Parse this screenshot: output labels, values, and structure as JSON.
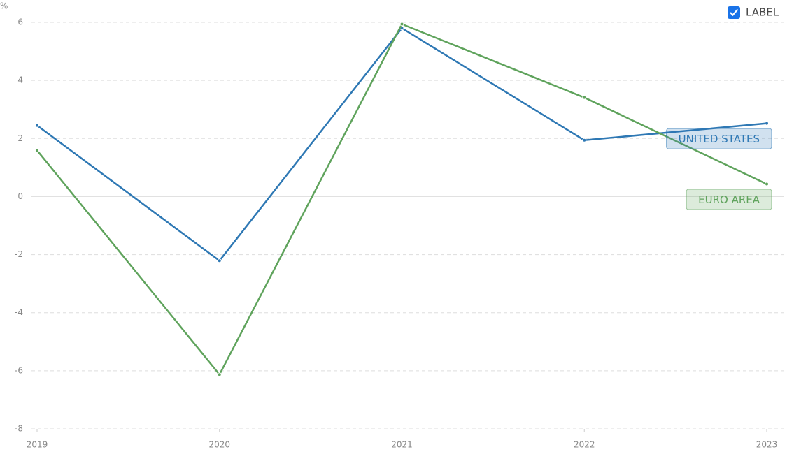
{
  "chart_data": {
    "type": "line",
    "y_label": "%",
    "categories": [
      "2019",
      "2020",
      "2021",
      "2022",
      "2023"
    ],
    "series": [
      {
        "name": "UNITED STATES",
        "color": "#2e78b4",
        "values": [
          2.45,
          -2.21,
          5.8,
          1.94,
          2.52
        ]
      },
      {
        "name": "EURO AREA",
        "color": "#5fa35c",
        "values": [
          1.59,
          -6.13,
          5.94,
          3.41,
          0.43
        ]
      }
    ],
    "ylim": [
      -8,
      6
    ],
    "yticks": [
      -8,
      -6,
      -4,
      -2,
      0,
      2,
      4,
      6
    ],
    "grid": true,
    "checkbox_label": "LABEL",
    "checkbox_checked": true
  }
}
